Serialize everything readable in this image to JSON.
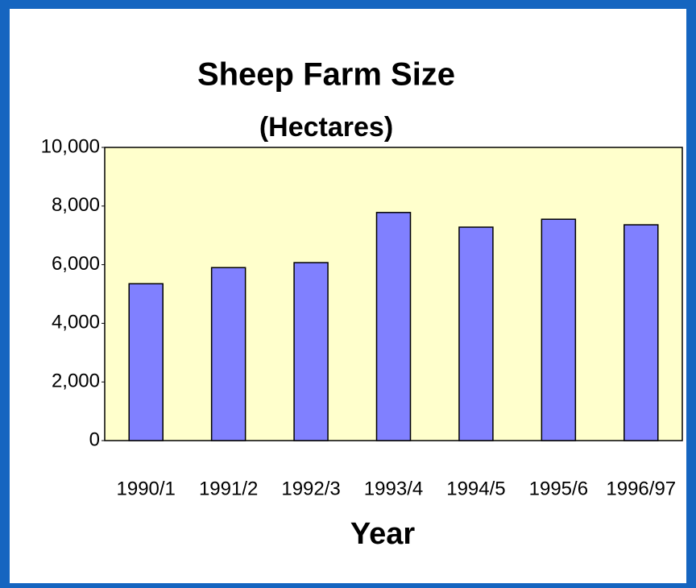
{
  "chart_data": {
    "type": "bar",
    "title": "Sheep Farm Size",
    "subtitle": "(Hectares)",
    "x_label": "Year",
    "categories": [
      "1990/1",
      "1991/2",
      "1992/3",
      "1993/4",
      "1994/5",
      "1995/6",
      "1996/97"
    ],
    "values": [
      5350,
      5900,
      6070,
      7780,
      7280,
      7550,
      7360
    ],
    "color": "#8080ff",
    "ylim": [
      0,
      10000
    ],
    "yticks": [
      0,
      {
        "value": 2000,
        "label": "2,000"
      },
      {
        "value": 4000,
        "label": "4,000"
      },
      {
        "value": 6000,
        "label": "6,000"
      },
      {
        "value": 8000,
        "label": "8,000"
      },
      {
        "value": 10000,
        "label": "10,000"
      }
    ],
    "grid": false
  }
}
